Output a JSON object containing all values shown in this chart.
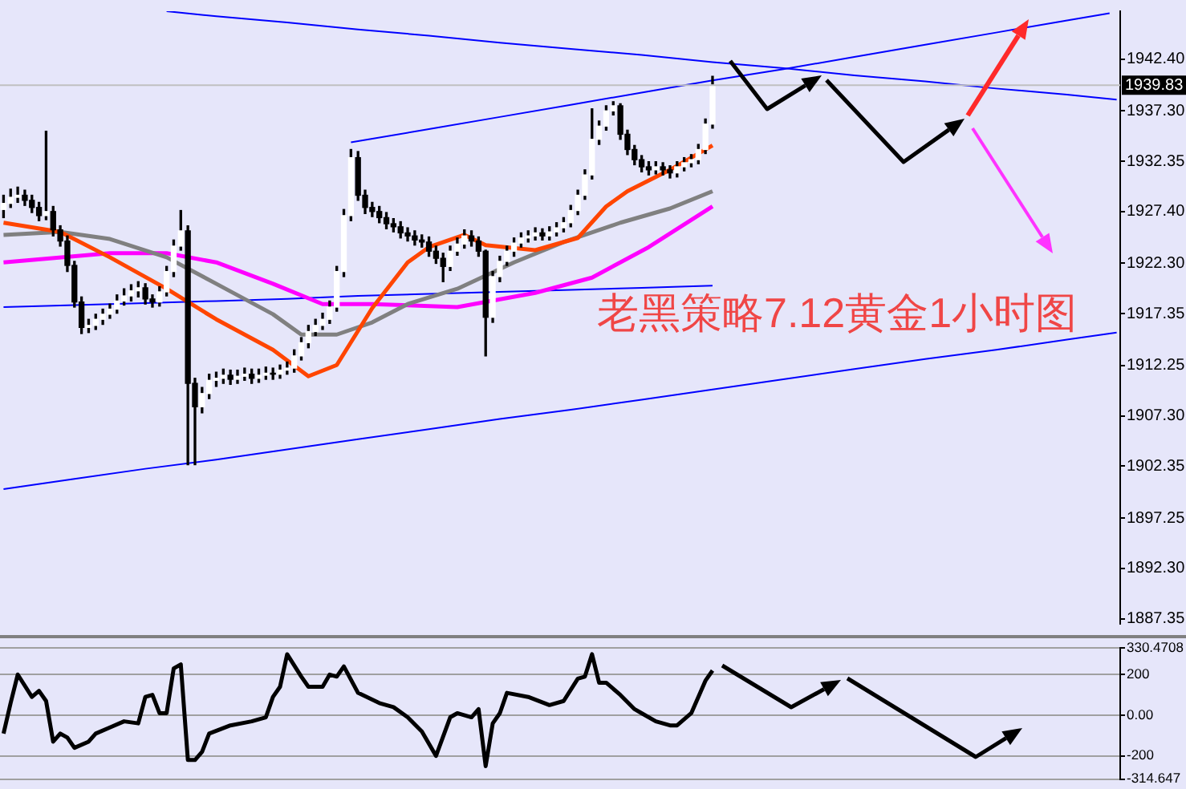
{
  "chart_data": [
    {
      "type": "candlestick",
      "categories": [
        null,
        null,
        null,
        null,
        null,
        null,
        null,
        null,
        null,
        null,
        null,
        null,
        null,
        null,
        null,
        null,
        null,
        null,
        null,
        null,
        null,
        null,
        null,
        null,
        null,
        null,
        null,
        null,
        null,
        null,
        null,
        null,
        null,
        null,
        null,
        null,
        null,
        null,
        null,
        null,
        null,
        null,
        null,
        null,
        null,
        null,
        null,
        null,
        null,
        null,
        null,
        null,
        null,
        null,
        null,
        null,
        null,
        null,
        null,
        null,
        null,
        null,
        null,
        null,
        null,
        null,
        null,
        null,
        null,
        null,
        null,
        null,
        null,
        null,
        null,
        null,
        null,
        null,
        null,
        null,
        null,
        null,
        null,
        null,
        null,
        null,
        null,
        null,
        null,
        null,
        null,
        null,
        null,
        null,
        null,
        null,
        null,
        null,
        null,
        null,
        null,
        null,
        null,
        null,
        null,
        null,
        null,
        null,
        null,
        null,
        null,
        null,
        null,
        null,
        null,
        null,
        null,
        null,
        null,
        null,
        null,
        null,
        null,
        null,
        null,
        null,
        null,
        null,
        null,
        null,
        null,
        null,
        null,
        null,
        null,
        null,
        null,
        null,
        null,
        null,
        null,
        null,
        null,
        null,
        null,
        null,
        null,
        null,
        null,
        null,
        null,
        null,
        null,
        null,
        null,
        null,
        null,
        null
      ],
      "ohlc": [
        [
          1927.6,
          1929.0,
          1926.8,
          1928.2
        ],
        [
          1928.2,
          1929.6,
          1927.8,
          1928.8
        ],
        [
          1928.8,
          1929.8,
          1928.3,
          1929.0
        ],
        [
          1929.0,
          1929.5,
          1928.0,
          1928.5
        ],
        [
          1928.5,
          1929.0,
          1927.3,
          1927.8
        ],
        [
          1927.8,
          1928.3,
          1926.5,
          1927.0
        ],
        [
          1927.0,
          1935.3,
          1926.6,
          1927.4
        ],
        [
          1927.4,
          1927.9,
          1925.0,
          1925.6
        ],
        [
          1925.6,
          1926.0,
          1924.0,
          1924.5
        ],
        [
          1924.5,
          1925.0,
          1921.5,
          1922.1
        ],
        [
          1922.1,
          1922.5,
          1918.0,
          1918.5
        ],
        [
          1918.5,
          1919.0,
          1915.4,
          1916.0
        ],
        [
          1916.0,
          1916.8,
          1915.5,
          1916.2
        ],
        [
          1916.2,
          1917.3,
          1915.8,
          1916.8
        ],
        [
          1916.8,
          1917.8,
          1916.3,
          1917.3
        ],
        [
          1917.3,
          1918.3,
          1916.9,
          1917.8
        ],
        [
          1917.8,
          1919.2,
          1917.4,
          1918.6
        ],
        [
          1918.6,
          1919.8,
          1918.2,
          1919.1
        ],
        [
          1919.1,
          1920.2,
          1918.6,
          1919.6
        ],
        [
          1919.6,
          1920.5,
          1919.0,
          1919.9
        ],
        [
          1919.9,
          1920.3,
          1918.3,
          1918.8
        ],
        [
          1918.8,
          1919.2,
          1918.0,
          1918.5
        ],
        [
          1918.5,
          1920.0,
          1918.1,
          1919.5
        ],
        [
          1919.5,
          1922.0,
          1919.1,
          1921.5
        ],
        [
          1921.5,
          1924.6,
          1921.0,
          1924.0
        ],
        [
          1924.0,
          1927.5,
          1923.6,
          1925.5
        ],
        [
          1925.5,
          1926.0,
          1902.5,
          1910.5
        ],
        [
          1910.5,
          1911.0,
          1902.5,
          1908.2
        ],
        [
          1908.2,
          1910.1,
          1907.6,
          1909.5
        ],
        [
          1909.5,
          1911.4,
          1909.0,
          1910.8
        ],
        [
          1910.8,
          1911.6,
          1910.2,
          1911.0
        ],
        [
          1911.0,
          1911.9,
          1910.5,
          1911.3
        ],
        [
          1911.3,
          1911.8,
          1910.4,
          1910.9
        ],
        [
          1910.9,
          1911.8,
          1910.5,
          1911.2
        ],
        [
          1911.2,
          1912.0,
          1910.8,
          1911.4
        ],
        [
          1911.4,
          1911.9,
          1910.5,
          1911.0
        ],
        [
          1911.0,
          1911.9,
          1910.6,
          1911.3
        ],
        [
          1911.3,
          1912.1,
          1910.9,
          1911.5
        ],
        [
          1911.5,
          1912.0,
          1910.9,
          1911.4
        ],
        [
          1911.4,
          1912.3,
          1911.0,
          1911.8
        ],
        [
          1911.8,
          1912.6,
          1911.4,
          1912.0
        ],
        [
          1912.0,
          1913.8,
          1911.6,
          1913.2
        ],
        [
          1913.2,
          1915.0,
          1912.8,
          1914.5
        ],
        [
          1914.5,
          1916.2,
          1914.0,
          1915.6
        ],
        [
          1915.6,
          1916.8,
          1915.2,
          1916.2
        ],
        [
          1916.2,
          1917.4,
          1915.8,
          1916.8
        ],
        [
          1916.8,
          1918.6,
          1916.4,
          1918.0
        ],
        [
          1918.0,
          1922.0,
          1917.6,
          1921.5
        ],
        [
          1921.5,
          1927.6,
          1921.0,
          1927.0
        ],
        [
          1927.0,
          1933.5,
          1926.5,
          1932.7
        ],
        [
          1932.7,
          1933.3,
          1928.5,
          1929.0
        ],
        [
          1929.0,
          1929.5,
          1927.2,
          1927.8
        ],
        [
          1927.8,
          1928.3,
          1926.9,
          1927.4
        ],
        [
          1927.4,
          1927.9,
          1926.3,
          1926.8
        ],
        [
          1926.8,
          1927.3,
          1925.7,
          1926.2
        ],
        [
          1926.2,
          1926.7,
          1925.4,
          1925.9
        ],
        [
          1925.9,
          1926.4,
          1924.8,
          1925.3
        ],
        [
          1925.3,
          1925.8,
          1924.5,
          1925.0
        ],
        [
          1925.0,
          1925.5,
          1924.1,
          1924.6
        ],
        [
          1924.6,
          1925.1,
          1923.9,
          1924.4
        ],
        [
          1924.4,
          1924.9,
          1923.0,
          1923.5
        ],
        [
          1923.5,
          1924.0,
          1922.3,
          1922.8
        ],
        [
          1922.8,
          1923.3,
          1920.5,
          1922.0
        ],
        [
          1922.0,
          1924.0,
          1921.6,
          1923.5
        ],
        [
          1923.5,
          1924.8,
          1923.1,
          1924.2
        ],
        [
          1924.2,
          1925.6,
          1923.8,
          1925.0
        ],
        [
          1925.0,
          1925.5,
          1924.0,
          1924.5
        ],
        [
          1924.5,
          1924.9,
          1923.0,
          1923.5
        ],
        [
          1923.5,
          1923.6,
          1913.2,
          1917.0
        ],
        [
          1917.0,
          1921.5,
          1916.5,
          1921.0
        ],
        [
          1921.0,
          1923.0,
          1920.5,
          1922.5
        ],
        [
          1922.5,
          1924.0,
          1922.1,
          1923.5
        ],
        [
          1923.5,
          1924.8,
          1923.0,
          1924.3
        ],
        [
          1924.3,
          1925.3,
          1923.9,
          1924.8
        ],
        [
          1924.8,
          1925.5,
          1924.4,
          1925.0
        ],
        [
          1925.0,
          1925.8,
          1924.6,
          1925.3
        ],
        [
          1925.3,
          1925.7,
          1924.6,
          1925.0
        ],
        [
          1925.0,
          1925.9,
          1924.6,
          1925.4
        ],
        [
          1925.4,
          1926.3,
          1925.0,
          1925.8
        ],
        [
          1925.8,
          1926.8,
          1925.4,
          1926.3
        ],
        [
          1926.3,
          1928.0,
          1925.9,
          1927.5
        ],
        [
          1927.5,
          1929.5,
          1927.1,
          1929.0
        ],
        [
          1929.0,
          1931.5,
          1928.6,
          1931.0
        ],
        [
          1931.0,
          1937.5,
          1930.6,
          1934.5
        ],
        [
          1934.5,
          1936.3,
          1934.0,
          1935.8
        ],
        [
          1935.8,
          1937.8,
          1935.4,
          1937.3
        ],
        [
          1937.3,
          1938.2,
          1936.9,
          1937.8
        ],
        [
          1937.8,
          1938.0,
          1934.5,
          1935.0
        ],
        [
          1935.0,
          1935.4,
          1933.0,
          1933.5
        ],
        [
          1933.5,
          1933.9,
          1932.0,
          1932.5
        ],
        [
          1932.5,
          1932.9,
          1931.3,
          1931.8
        ],
        [
          1931.8,
          1932.3,
          1931.0,
          1931.5
        ],
        [
          1931.5,
          1932.3,
          1931.1,
          1931.8
        ],
        [
          1931.8,
          1932.2,
          1931.0,
          1931.5
        ],
        [
          1931.5,
          1931.9,
          1930.7,
          1931.2
        ],
        [
          1931.2,
          1932.3,
          1930.8,
          1931.8
        ],
        [
          1931.8,
          1932.7,
          1931.4,
          1932.2
        ],
        [
          1932.2,
          1933.0,
          1931.8,
          1932.5
        ],
        [
          1932.5,
          1934.0,
          1932.1,
          1933.5
        ],
        [
          1933.5,
          1936.5,
          1933.1,
          1936.0
        ],
        [
          1936.0,
          1940.7,
          1935.6,
          1939.83
        ],
        null,
        null,
        null,
        null,
        null,
        null,
        null,
        null,
        null,
        null,
        null,
        null,
        null,
        null,
        null,
        null,
        null,
        null,
        null,
        null,
        null,
        null,
        null,
        null,
        null,
        null,
        null,
        null,
        null,
        null,
        null,
        null,
        null,
        null,
        null,
        null,
        null,
        null,
        null,
        null,
        null,
        null,
        null,
        null,
        null,
        null,
        null,
        null,
        null,
        null,
        null,
        null,
        null,
        null,
        null,
        null,
        null
      ],
      "series": [
        {
          "type": "line",
          "color": "#ff4500",
          "values": [
            1926.3,
            null,
            null,
            null,
            null,
            null,
            null,
            null,
            1925.4,
            null,
            null,
            null,
            null,
            null,
            null,
            1922.9,
            null,
            null,
            null,
            null,
            null,
            null,
            null,
            1919.8,
            null,
            null,
            null,
            null,
            null,
            null,
            1916.8,
            null,
            null,
            null,
            null,
            null,
            null,
            null,
            1913.8,
            null,
            null,
            null,
            null,
            1911.2,
            null,
            null,
            null,
            1912.3,
            null,
            null,
            null,
            null,
            1917.9,
            null,
            null,
            null,
            null,
            1922.4,
            null,
            null,
            1923.9,
            null,
            null,
            null,
            null,
            1925.1,
            null,
            null,
            1924.1,
            null,
            null,
            null,
            null,
            null,
            null,
            1923.6,
            null,
            null,
            null,
            null,
            null,
            1924.8,
            null,
            null,
            null,
            1927.9,
            null,
            null,
            1929.4,
            null,
            null,
            null,
            null,
            null,
            1931.5,
            null,
            null,
            null,
            null,
            null,
            1933.9,
            null,
            null,
            null,
            null,
            null,
            null,
            null,
            null,
            null,
            null,
            null,
            null,
            null,
            null,
            null,
            null,
            null,
            null,
            null,
            null,
            null,
            null,
            null,
            null,
            null,
            null,
            null,
            null,
            null,
            null,
            null,
            null,
            null,
            null,
            null,
            null,
            null,
            null,
            null,
            null,
            null,
            null,
            null,
            null,
            null,
            null,
            null,
            null,
            null,
            null,
            null,
            null,
            null,
            null,
            null,
            null,
            null
          ]
        },
        {
          "type": "line",
          "color": "#808080",
          "values": [
            1925.1,
            null,
            null,
            null,
            null,
            null,
            null,
            null,
            1925.4,
            null,
            null,
            null,
            null,
            null,
            null,
            1924.7,
            null,
            null,
            null,
            null,
            null,
            null,
            null,
            1922.9,
            null,
            null,
            null,
            null,
            null,
            null,
            1920.3,
            null,
            null,
            null,
            null,
            null,
            null,
            null,
            1917.3,
            null,
            null,
            null,
            1915.3,
            null,
            null,
            null,
            null,
            1915.3,
            null,
            null,
            null,
            null,
            1916.5,
            null,
            null,
            null,
            null,
            1918.3,
            null,
            null,
            null,
            null,
            null,
            null,
            1919.8,
            null,
            null,
            null,
            null,
            null,
            null,
            null,
            1922.4,
            null,
            null,
            null,
            null,
            null,
            null,
            1924.4,
            null,
            null,
            null,
            null,
            null,
            null,
            null,
            1926.3,
            null,
            null,
            null,
            null,
            null,
            null,
            1927.7,
            null,
            null,
            null,
            null,
            null,
            1929.4,
            null,
            null,
            null,
            null,
            null,
            null,
            null,
            null,
            null,
            null,
            null,
            null,
            null,
            null,
            null,
            null,
            null,
            null,
            null,
            null,
            null,
            null,
            null,
            null,
            null,
            null,
            null,
            null,
            null,
            null,
            null,
            null,
            null,
            null,
            null,
            null,
            null,
            null,
            null,
            null,
            null,
            null,
            null,
            null,
            null,
            null,
            null,
            null,
            null,
            null,
            null,
            null,
            null,
            null,
            null,
            null,
            null
          ]
        },
        {
          "type": "line",
          "color": "#ff00ff",
          "values": [
            1922.4,
            null,
            null,
            null,
            null,
            null,
            null,
            null,
            null,
            null,
            null,
            null,
            null,
            null,
            null,
            1923.3,
            null,
            null,
            null,
            null,
            null,
            null,
            null,
            1923.3,
            null,
            null,
            null,
            null,
            null,
            null,
            1922.4,
            null,
            null,
            null,
            null,
            null,
            null,
            null,
            1920.3,
            null,
            null,
            null,
            null,
            null,
            null,
            1918.3,
            null,
            null,
            null,
            null,
            null,
            null,
            1918.3,
            null,
            null,
            null,
            null,
            null,
            null,
            null,
            null,
            null,
            null,
            null,
            1918.0,
            null,
            null,
            null,
            null,
            null,
            null,
            null,
            null,
            null,
            null,
            1919.4,
            null,
            null,
            null,
            null,
            null,
            null,
            null,
            1920.9,
            null,
            null,
            null,
            null,
            null,
            null,
            null,
            1923.9,
            null,
            null,
            null,
            null,
            null,
            null,
            null,
            null,
            1927.9,
            null,
            null,
            null,
            null,
            null,
            null,
            null,
            null,
            null,
            null,
            null,
            null,
            null,
            null,
            null,
            null,
            null,
            null,
            null,
            null,
            null,
            null,
            null,
            null,
            null,
            null,
            null,
            null,
            null,
            null,
            null,
            null,
            null,
            null,
            null,
            null,
            null,
            null,
            null,
            null,
            null,
            null,
            null,
            null,
            null,
            null,
            null,
            null,
            null,
            null,
            null,
            null,
            null,
            null,
            null,
            null,
            null
          ]
        },
        {
          "type": "line",
          "color": "#0000ff",
          "values": [
            null,
            null,
            null,
            null,
            null,
            null,
            null,
            null,
            null,
            null,
            null,
            null,
            null,
            null,
            null,
            null,
            null,
            null,
            null,
            null,
            null,
            null,
            null,
            null,
            null,
            null,
            null,
            null,
            null,
            null,
            null,
            null,
            null,
            null,
            null,
            null,
            null,
            null,
            null,
            null,
            null,
            null,
            null,
            null,
            null,
            null,
            null,
            null,
            null,
            1934.2,
            null,
            null,
            null,
            null,
            null,
            null,
            null,
            null,
            null,
            null,
            1935.5,
            null,
            null,
            null,
            null,
            null,
            null,
            null,
            null,
            null,
            1936.7,
            null,
            null,
            null,
            null,
            null,
            null,
            null,
            null,
            null,
            1937.9,
            null,
            null,
            null,
            null,
            null,
            null,
            null,
            null,
            null,
            1939.1,
            null,
            null,
            null,
            null,
            null,
            null,
            null,
            null,
            null,
            1940.3,
            null,
            null,
            null,
            null,
            null,
            null,
            null,
            null,
            null,
            1941.4,
            null,
            null,
            null,
            null,
            null,
            null,
            null,
            null,
            null,
            1942.6,
            null,
            null,
            null,
            null,
            null,
            null,
            null,
            null,
            null,
            1943.8,
            null,
            null,
            null,
            null,
            null,
            null,
            null,
            null,
            null,
            1945.0,
            null,
            null,
            null,
            null,
            null,
            null,
            null,
            null,
            null,
            1946.2,
            null,
            null,
            null,
            null,
            null,
            1946.9,
            null
          ]
        },
        {
          "type": "line",
          "color": "#0000ff",
          "values": [
            1900.1,
            null,
            null,
            null,
            null,
            null,
            null,
            null,
            null,
            null,
            1901.1,
            null,
            null,
            null,
            null,
            null,
            null,
            null,
            null,
            null,
            1902.1,
            null,
            null,
            null,
            null,
            null,
            null,
            null,
            null,
            null,
            1903.0,
            null,
            null,
            null,
            null,
            null,
            null,
            null,
            null,
            null,
            1904.0,
            null,
            null,
            null,
            null,
            null,
            null,
            null,
            null,
            null,
            1905.0,
            null,
            null,
            null,
            null,
            null,
            null,
            null,
            null,
            null,
            1906.0,
            null,
            null,
            null,
            null,
            null,
            null,
            null,
            null,
            null,
            1907.0,
            null,
            null,
            null,
            null,
            null,
            null,
            null,
            null,
            null,
            1907.9,
            null,
            null,
            null,
            null,
            null,
            null,
            null,
            null,
            null,
            1908.9,
            null,
            null,
            null,
            null,
            null,
            null,
            null,
            null,
            null,
            1909.9,
            null,
            null,
            null,
            null,
            null,
            null,
            null,
            null,
            null,
            1910.9,
            null,
            null,
            null,
            null,
            null,
            null,
            null,
            null,
            null,
            1911.9,
            null,
            null,
            null,
            null,
            null,
            null,
            null,
            null,
            null,
            1912.9,
            null,
            null,
            null,
            null,
            null,
            null,
            null,
            null,
            null,
            1913.8,
            null,
            null,
            null,
            null,
            null,
            null,
            null,
            null,
            null,
            1914.8,
            null,
            null,
            null,
            null,
            null,
            null,
            1915.5
          ]
        },
        {
          "type": "line",
          "color": "#0000ff",
          "values": [
            null,
            null,
            null,
            null,
            null,
            null,
            null,
            null,
            null,
            null,
            null,
            null,
            null,
            null,
            null,
            null,
            null,
            null,
            null,
            null,
            null,
            null,
            null,
            1947.1,
            null,
            null,
            null,
            null,
            null,
            null,
            1946.6,
            null,
            null,
            null,
            null,
            null,
            null,
            null,
            null,
            null,
            1946.0,
            null,
            null,
            null,
            null,
            null,
            null,
            null,
            null,
            null,
            1945.3,
            null,
            null,
            null,
            null,
            null,
            null,
            null,
            null,
            null,
            1944.7,
            null,
            null,
            null,
            null,
            null,
            null,
            null,
            null,
            null,
            1944.0,
            null,
            null,
            null,
            null,
            null,
            null,
            null,
            null,
            null,
            1943.4,
            null,
            null,
            null,
            null,
            null,
            null,
            null,
            null,
            null,
            1942.8,
            null,
            null,
            null,
            null,
            null,
            null,
            null,
            null,
            null,
            1942.1,
            null,
            null,
            null,
            null,
            null,
            null,
            null,
            null,
            null,
            1941.5,
            null,
            null,
            null,
            null,
            null,
            null,
            null,
            null,
            null,
            1940.8,
            null,
            null,
            null,
            null,
            null,
            null,
            null,
            null,
            null,
            1940.2,
            null,
            null,
            null,
            null,
            null,
            null,
            null,
            null,
            null,
            1939.5,
            null,
            null,
            null,
            null,
            null,
            null,
            null,
            null,
            null,
            1938.9,
            null,
            null,
            null,
            null,
            null,
            null,
            1938.4
          ]
        },
        {
          "type": "line",
          "color": "#0000ff",
          "values": [
            1918.0,
            null,
            null,
            null,
            null,
            null,
            null,
            null,
            null,
            null,
            1918.2,
            null,
            null,
            null,
            null,
            null,
            null,
            null,
            null,
            null,
            1918.4,
            null,
            null,
            null,
            null,
            null,
            null,
            null,
            null,
            null,
            1918.6,
            null,
            null,
            null,
            null,
            null,
            null,
            null,
            null,
            null,
            1918.8,
            null,
            null,
            null,
            null,
            null,
            null,
            null,
            null,
            null,
            1919.1,
            null,
            null,
            null,
            null,
            null,
            null,
            null,
            null,
            null,
            1919.3,
            null,
            null,
            null,
            null,
            null,
            null,
            null,
            null,
            null,
            1919.5,
            null,
            null,
            null,
            null,
            null,
            null,
            null,
            null,
            null,
            1919.7,
            null,
            null,
            null,
            null,
            null,
            null,
            null,
            null,
            null,
            1919.9,
            null,
            null,
            null,
            null,
            null,
            null,
            null,
            null,
            null,
            1920.1,
            null,
            null,
            null,
            null,
            null,
            null,
            null,
            null,
            null,
            null,
            null,
            null,
            null,
            null,
            null,
            null,
            null,
            null,
            null,
            null,
            null,
            null,
            null,
            null,
            null,
            null,
            null,
            null,
            null,
            null,
            null,
            null,
            null,
            null,
            null,
            null,
            null,
            null,
            null,
            null,
            null,
            null,
            null,
            null,
            null,
            null,
            null,
            null,
            null,
            null,
            null,
            null,
            null,
            null,
            null,
            null,
            null
          ]
        }
      ],
      "ylim": [
        1886.85,
        1947.1
      ],
      "yticks": [
        {
          "value": 1942.4,
          "label": "1942.40"
        },
        {
          "value": 1937.3,
          "label": "1937.30"
        },
        {
          "value": 1932.35,
          "label": "1932.35"
        },
        {
          "value": 1927.4,
          "label": "1927.40"
        },
        {
          "value": 1922.3,
          "label": "1922.30"
        },
        {
          "value": 1917.35,
          "label": "1917.35"
        },
        {
          "value": 1912.25,
          "label": "1912.25"
        },
        {
          "value": 1907.3,
          "label": "1907.30"
        },
        {
          "value": 1902.35,
          "label": "1902.35"
        },
        {
          "value": 1897.25,
          "label": "1897.25"
        },
        {
          "value": 1892.3,
          "label": "1892.30"
        },
        {
          "value": 1887.35,
          "label": "1887.35"
        }
      ],
      "ref_lines": [
        {
          "axis": "y",
          "value": 1939.83,
          "label": "1939.83",
          "color": "#c0c0c0"
        }
      ],
      "annotations": [
        "老黑策略7.12黄金1小时图"
      ],
      "tick_labels": "y"
    },
    {
      "type": "line",
      "color": "#000000",
      "categories": [
        null,
        null,
        null,
        null,
        null,
        null,
        null,
        null,
        null,
        null,
        null,
        null,
        null,
        null,
        null,
        null,
        null,
        null,
        null,
        null,
        null,
        null,
        null,
        null,
        null,
        null,
        null,
        null,
        null,
        null,
        null,
        null,
        null,
        null,
        null,
        null,
        null,
        null,
        null,
        null,
        null,
        null,
        null,
        null,
        null,
        null,
        null,
        null,
        null,
        null,
        null,
        null,
        null,
        null,
        null,
        null,
        null,
        null,
        null,
        null,
        null,
        null,
        null,
        null,
        null,
        null,
        null,
        null,
        null,
        null,
        null,
        null,
        null,
        null,
        null,
        null,
        null,
        null,
        null,
        null,
        null,
        null,
        null,
        null,
        null,
        null,
        null,
        null,
        null,
        null,
        null,
        null,
        null,
        null,
        null,
        null,
        null,
        null,
        null,
        null,
        null,
        null,
        null,
        null,
        null,
        null,
        null,
        null,
        null,
        null,
        null,
        null,
        null,
        null,
        null,
        null,
        null,
        null,
        null,
        null,
        null,
        null,
        null,
        null,
        null,
        null,
        null,
        null,
        null,
        null,
        null,
        null,
        null,
        null,
        null,
        null,
        null,
        null,
        null,
        null,
        null,
        null,
        null,
        null,
        null,
        null,
        null,
        null,
        null,
        null,
        null,
        null,
        null,
        null,
        null,
        null,
        null,
        null
      ],
      "values": [
        -90,
        60,
        200,
        null,
        90,
        120,
        70,
        -130,
        -90,
        -110,
        -160,
        null,
        -130,
        -90,
        null,
        -60,
        null,
        -30,
        null,
        -40,
        90,
        100,
        10,
        10,
        230,
        250,
        -220,
        -220,
        -180,
        -90,
        null,
        null,
        -50,
        null,
        null,
        -30,
        null,
        -10,
        90,
        140,
        300,
        null,
        190,
        140,
        null,
        140,
        200,
        190,
        240,
        null,
        110,
        null,
        null,
        60,
        null,
        40,
        null,
        -10,
        null,
        -80,
        null,
        -200,
        null,
        -10,
        10,
        null,
        -10,
        30,
        -250,
        -40,
        10,
        110,
        null,
        null,
        90,
        null,
        null,
        50,
        null,
        70,
        null,
        180,
        190,
        300,
        160,
        160,
        null,
        100,
        null,
        30,
        10,
        null,
        -30,
        null,
        -50,
        -50,
        null,
        10,
        null,
        170,
        220,
        null,
        null,
        null,
        null,
        null,
        null,
        null,
        null,
        null,
        null,
        null,
        null,
        null,
        null,
        null,
        null,
        null,
        null,
        null,
        null,
        null,
        null,
        null,
        null,
        null,
        null,
        null,
        null,
        null,
        null,
        null,
        null,
        null,
        null,
        null,
        null,
        null,
        null,
        null,
        null,
        null,
        null,
        null,
        null,
        null,
        null,
        null,
        null,
        null,
        null,
        null,
        null,
        null,
        null,
        null,
        null,
        null
      ],
      "ylim": [
        -314.647,
        330.4708
      ],
      "yticks": [
        {
          "value": -314.647,
          "label": "-314.647"
        },
        -200,
        {
          "value": 0,
          "label": "0.00"
        },
        200,
        {
          "value": 330.4708,
          "label": "330.4708"
        }
      ],
      "grid": "y",
      "tick_labels": "y"
    }
  ]
}
